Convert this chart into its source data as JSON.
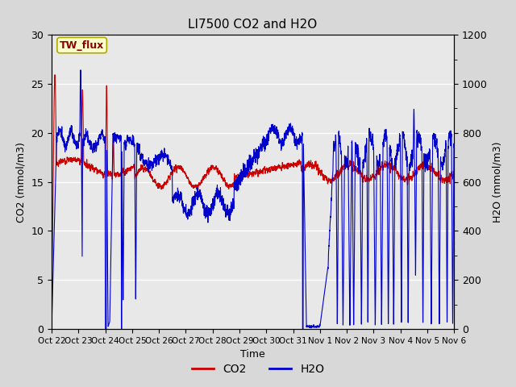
{
  "title": "LI7500 CO2 and H2O",
  "xlabel": "Time",
  "ylabel_left": "CO2 (mmol/m3)",
  "ylabel_right": "H2O (mmol/m3)",
  "co2_color": "#cc0000",
  "h2o_color": "#0000cc",
  "ylim_left": [
    0,
    30
  ],
  "ylim_right": [
    0,
    1200
  ],
  "plot_bg_color": "#e8e8e8",
  "outer_bg_color": "#d8d8d8",
  "legend_label_co2": "CO2",
  "legend_label_h2o": "H2O",
  "annotation_text": "TW_flux",
  "annotation_color": "#8b0000",
  "annotation_bg": "#ffffcc",
  "annotation_border": "#aaaa00",
  "tick_labels": [
    "Oct 22",
    "Oct 23",
    "Oct 24",
    "Oct 25",
    "Oct 26",
    "Oct 27",
    "Oct 28",
    "Oct 29",
    "Oct 30",
    "Oct 31",
    "Nov 1",
    "Nov 2",
    "Nov 3",
    "Nov 4",
    "Nov 5",
    "Nov 6"
  ],
  "n_points": 4000,
  "seed": 7
}
